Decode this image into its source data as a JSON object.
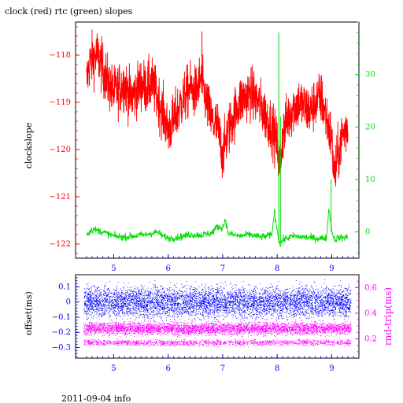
{
  "footer": "2011-09-04 info",
  "chart_data": [
    {
      "type": "line",
      "title": "clock (red) rtc (green) slopes",
      "ylabel": "clockslope",
      "xlabel": "",
      "xlim": [
        4.3,
        9.5
      ],
      "ylim": [
        -122.3,
        -117.3
      ],
      "y2lim": [
        -5,
        40
      ],
      "xticks": [
        5,
        6,
        7,
        8,
        9
      ],
      "yticks": [
        -122,
        -121,
        -120,
        -119,
        -118
      ],
      "y2ticks": [
        0,
        10,
        20,
        30
      ],
      "colors": {
        "left": "#ff0000",
        "right": "#00dd00",
        "x": "#0000ff"
      },
      "series": [
        {
          "axis": "left",
          "color": "#ff0000",
          "x": [
            4.5,
            4.55,
            4.6,
            4.7,
            4.8,
            4.9,
            5.0,
            5.1,
            5.2,
            5.3,
            5.4,
            5.5,
            5.6,
            5.7,
            5.8,
            5.9,
            6.0,
            6.1,
            6.2,
            6.3,
            6.4,
            6.5,
            6.6,
            6.7,
            6.8,
            6.9,
            7.0,
            7.1,
            7.2,
            7.3,
            7.4,
            7.5,
            7.6,
            7.7,
            7.8,
            7.9,
            8.0,
            8.05,
            8.1,
            8.2,
            8.3,
            8.4,
            8.5,
            8.6,
            8.7,
            8.8,
            8.9,
            9.0,
            9.05,
            9.1,
            9.2,
            9.3
          ],
          "y": [
            -118.6,
            -118.2,
            -118.1,
            -118.0,
            -118.3,
            -118.6,
            -118.8,
            -118.7,
            -118.6,
            -118.9,
            -118.8,
            -118.6,
            -118.7,
            -118.6,
            -118.9,
            -119.2,
            -119.6,
            -119.4,
            -119.1,
            -118.9,
            -118.7,
            -118.8,
            -118.5,
            -119.0,
            -119.4,
            -119.5,
            -120.1,
            -119.6,
            -119.3,
            -119.0,
            -118.9,
            -118.8,
            -118.9,
            -119.1,
            -119.3,
            -119.5,
            -119.9,
            -120.4,
            -119.7,
            -119.3,
            -119.1,
            -119.0,
            -119.1,
            -119.2,
            -119.0,
            -118.9,
            -119.3,
            -119.8,
            -120.6,
            -120.2,
            -119.7,
            -119.5
          ]
        },
        {
          "axis": "right",
          "color": "#00dd00",
          "x": [
            4.5,
            4.6,
            4.7,
            4.8,
            5.0,
            5.2,
            5.4,
            5.6,
            5.8,
            5.9,
            6.0,
            6.2,
            6.4,
            6.6,
            6.8,
            6.9,
            7.0,
            7.05,
            7.1,
            7.3,
            7.5,
            7.7,
            7.9,
            7.95,
            8.0,
            8.05,
            8.1,
            8.3,
            8.5,
            8.7,
            8.9,
            8.95,
            9.0,
            9.05,
            9.1,
            9.3
          ],
          "y": [
            -0.5,
            0.5,
            0.3,
            0.0,
            -0.8,
            -1.0,
            -0.7,
            -0.5,
            0.0,
            -0.8,
            -1.2,
            -1.0,
            -0.5,
            -0.6,
            -0.2,
            1.0,
            0.8,
            2.5,
            -0.3,
            -0.8,
            -0.5,
            -1.0,
            -0.6,
            4.0,
            0.5,
            -2.5,
            -1.5,
            -0.8,
            -1.0,
            -1.2,
            -1.2,
            4.5,
            0.5,
            -1.5,
            -1.2,
            -1.0
          ]
        }
      ],
      "spikes": [
        {
          "axis": "left",
          "x": 6.62,
          "y_low": -118.7,
          "y_high": -117.5
        },
        {
          "axis": "right",
          "x": 8.03,
          "y_low": -2.0,
          "y_high": 38.0
        },
        {
          "axis": "right",
          "x": 8.06,
          "y_low": -2.0,
          "y_high": 22.0
        },
        {
          "axis": "right",
          "x": 8.99,
          "y_low": 0.0,
          "y_high": 10.0
        }
      ]
    },
    {
      "type": "scatter",
      "ylabel": "offset(ms)",
      "y2label": "rnd-trip(ms)",
      "xlim": [
        4.3,
        9.5
      ],
      "ylim": [
        -0.37,
        0.18
      ],
      "y2lim": [
        0.05,
        0.7
      ],
      "xticks": [
        5,
        6,
        7,
        8,
        9
      ],
      "yticks": [
        -0.3,
        -0.2,
        -0.1,
        0,
        0.1
      ],
      "y2ticks": [
        0.2,
        0.4,
        0.6
      ],
      "colors": {
        "left": "#0000ff",
        "right": "#ff00ff",
        "x": "#0000ff"
      },
      "series": [
        {
          "axis": "left",
          "color": "#0000ff",
          "x_range": [
            4.45,
            9.35
          ],
          "center": 0.0,
          "spread": 0.11
        },
        {
          "axis": "right",
          "color": "#ff00ff",
          "x_range": [
            4.45,
            9.35
          ],
          "center": 0.28,
          "spread": 0.08,
          "secondary_center": 0.17,
          "secondary_spread": 0.03
        }
      ]
    }
  ]
}
